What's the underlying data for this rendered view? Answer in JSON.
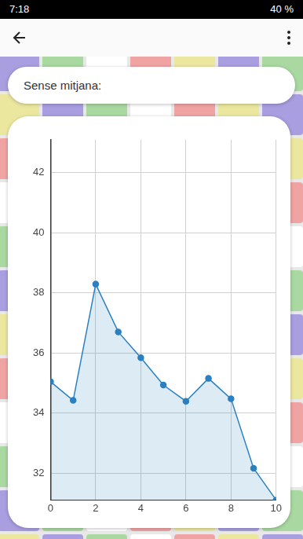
{
  "status_bar": {
    "time": "7:18",
    "battery": "40 %"
  },
  "header": {
    "text": "Sense mitjana:"
  },
  "chart_data": {
    "type": "line",
    "x": [
      0,
      1,
      2,
      3,
      4,
      5,
      6,
      7,
      8,
      9,
      10
    ],
    "values": [
      35.04,
      34.42,
      38.29,
      36.7,
      35.84,
      34.93,
      34.39,
      35.15,
      34.47,
      32.16,
      31.1
    ],
    "color": "#2a80c0",
    "marker": "circle",
    "xlim": [
      0,
      10
    ],
    "xticks": [
      0,
      2,
      4,
      6,
      8,
      10
    ],
    "ylim": [
      31.1,
      43.1
    ],
    "yticks": [
      32,
      34,
      36,
      38,
      40,
      42
    ],
    "grid": true
  }
}
